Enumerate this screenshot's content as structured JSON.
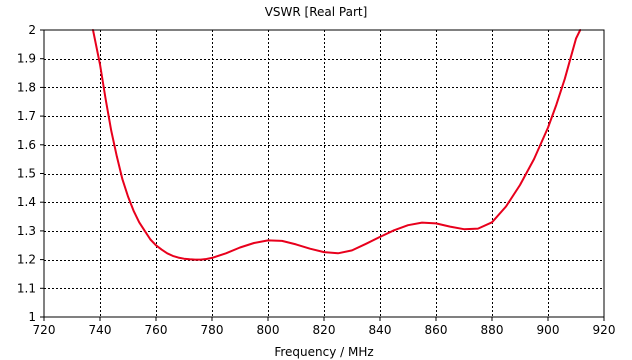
{
  "chart_data": {
    "type": "line",
    "title": "VSWR [Real Part]",
    "xlabel": "Frequency / MHz",
    "ylabel": "",
    "xlim": [
      720,
      920
    ],
    "ylim": [
      1,
      2
    ],
    "xticks": [
      720,
      740,
      760,
      780,
      800,
      820,
      840,
      860,
      880,
      900,
      920
    ],
    "yticks": [
      1,
      1.1,
      1.2,
      1.3,
      1.4,
      1.5,
      1.6,
      1.7,
      1.8,
      1.9,
      2
    ],
    "grid": true,
    "legend": "none",
    "series": [
      {
        "color": "#e8001c",
        "x": [
          737.5,
          740,
          742,
          744,
          746,
          748,
          750,
          752,
          754,
          756,
          758,
          760,
          762,
          764,
          766,
          768,
          770,
          772,
          774,
          776,
          778,
          780,
          785,
          790,
          795,
          800,
          805,
          810,
          815,
          820,
          825,
          830,
          835,
          840,
          845,
          850,
          855,
          860,
          865,
          870,
          875,
          880,
          885,
          890,
          895,
          900,
          903,
          906,
          908,
          910,
          911.5
        ],
        "y": [
          2.0,
          1.88,
          1.76,
          1.65,
          1.56,
          1.48,
          1.42,
          1.37,
          1.33,
          1.3,
          1.27,
          1.25,
          1.235,
          1.222,
          1.213,
          1.207,
          1.203,
          1.201,
          1.2,
          1.2,
          1.202,
          1.206,
          1.222,
          1.242,
          1.258,
          1.267,
          1.265,
          1.253,
          1.238,
          1.226,
          1.222,
          1.232,
          1.255,
          1.279,
          1.302,
          1.32,
          1.329,
          1.326,
          1.315,
          1.306,
          1.308,
          1.33,
          1.385,
          1.46,
          1.55,
          1.66,
          1.74,
          1.83,
          1.9,
          1.97,
          2.0
        ]
      }
    ]
  }
}
